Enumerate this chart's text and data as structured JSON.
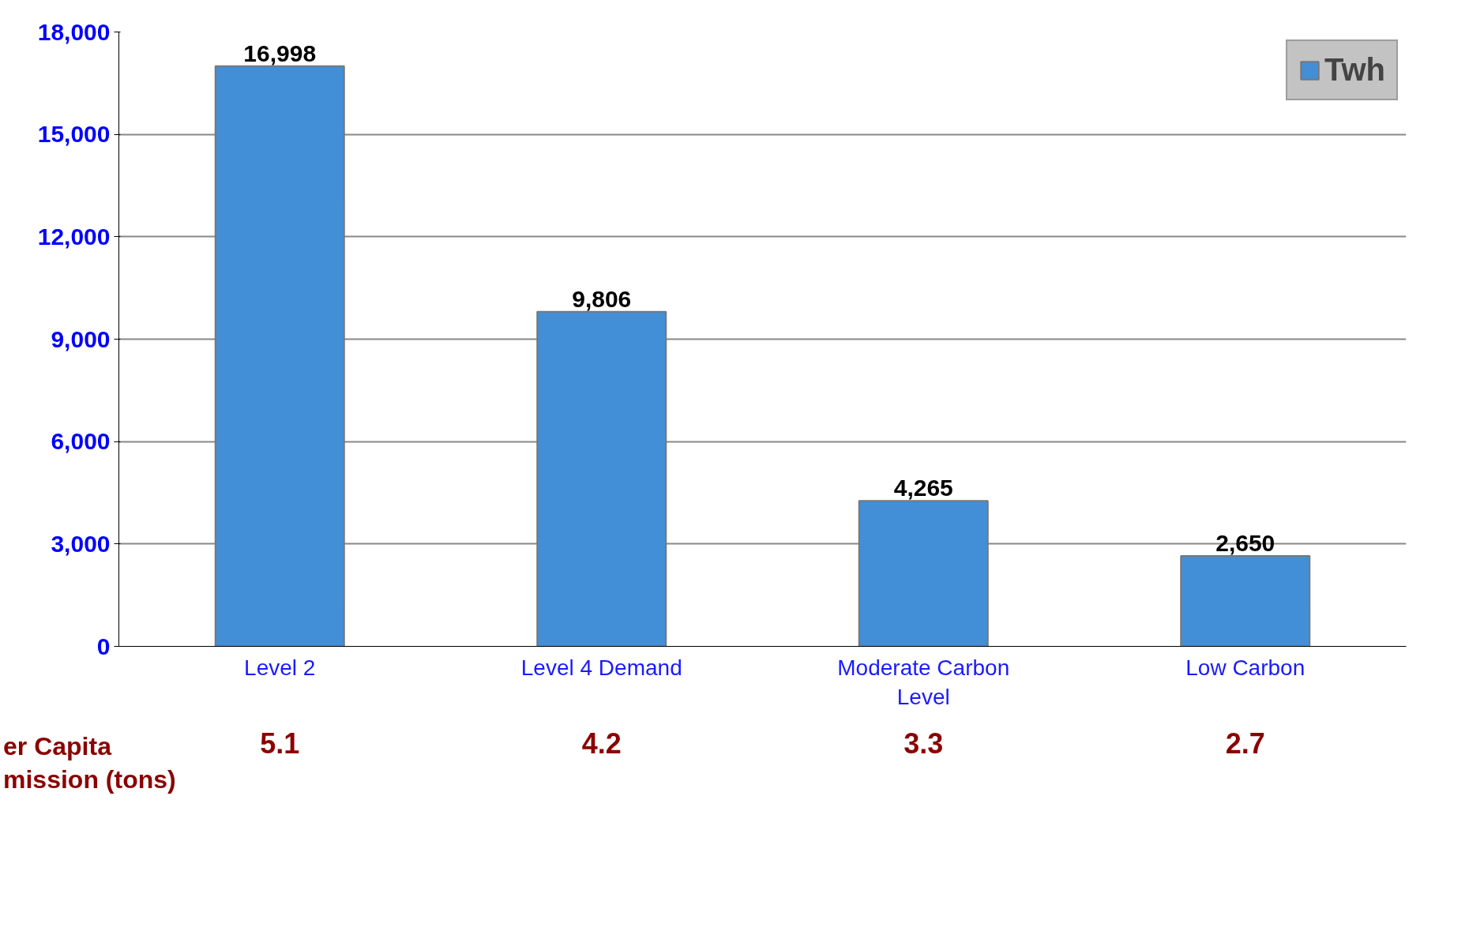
{
  "chart_data": {
    "type": "bar",
    "categories": [
      "Level 2",
      "Level 4 Demand",
      "Moderate Carbon Level",
      "Low Carbon"
    ],
    "series": [
      {
        "name": "Twh",
        "color": "#428fd8",
        "values": [
          16998,
          9806,
          4265,
          2650
        ]
      }
    ],
    "ylim": [
      0,
      18000
    ],
    "yticks": [
      0,
      {
        "value": 3000,
        "label": "3,000"
      },
      {
        "value": 6000,
        "label": "6,000"
      },
      {
        "value": 9000,
        "label": "9,000"
      },
      {
        "value": 12000,
        "label": "12,000"
      },
      {
        "value": 15000,
        "label": "15,000"
      },
      {
        "value": 18000,
        "label": "18,000"
      }
    ],
    "grid": "y",
    "legend": "top right",
    "value_labels": [
      "16,998",
      "9,806",
      "4,265",
      "2,650"
    ],
    "annotations": [
      "er Capita\nmission (tons)",
      "5.1",
      "4.2",
      "3.3",
      "2.7"
    ]
  }
}
